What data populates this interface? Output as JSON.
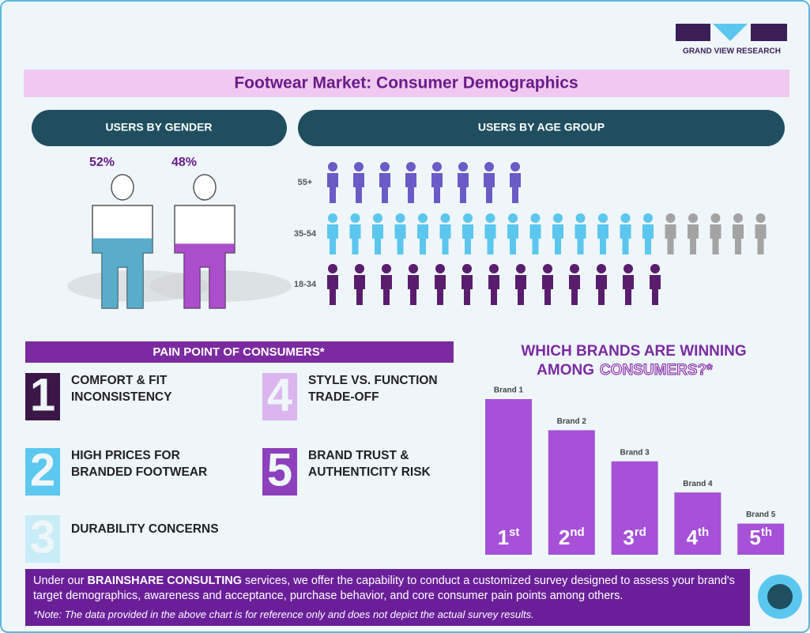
{
  "logo": "GRAND VIEW RESEARCH",
  "title": "Footwear Market: Consumer Demographics",
  "gender": {
    "heading": "USERS BY GENDER",
    "values": [
      52,
      48
    ],
    "value_labels": [
      "52%",
      "48%"
    ],
    "colors": [
      "#3d9dc2",
      "#9b2fc0"
    ]
  },
  "age": {
    "heading": "USERS BY AGE GROUP",
    "categories": [
      "55+",
      "35-54",
      "18-34"
    ],
    "filled": [
      8,
      15,
      13.2
    ],
    "unfilled": [
      0,
      5,
      0
    ],
    "colors": [
      "#6a5bc6",
      "#5bc6ee",
      "#5a1d6e"
    ],
    "unfilled_color": "#a3a3a3"
  },
  "pain_points": {
    "heading": "PAIN POINT OF CONSUMERS*",
    "items": [
      {
        "number": "1",
        "lines": [
          "COMFORT & FIT",
          "INCONSISTENCY"
        ],
        "color": "#3b1748"
      },
      {
        "number": "2",
        "lines": [
          "HIGH PRICES FOR",
          "BRANDED FOOTWEAR"
        ],
        "color": "#5cc7ef"
      },
      {
        "number": "3",
        "lines": [
          "DURABILITY CONCERNS"
        ],
        "color": "#c8ecf8"
      },
      {
        "number": "4",
        "lines": [
          "STYLE VS. FUNCTION",
          "TRADE-OFF"
        ],
        "color": "#dbb5ee"
      },
      {
        "number": "5",
        "lines": [
          "BRAND TRUST &",
          "AUTHENTICITY RISK"
        ],
        "color": "#8d3fbd"
      }
    ]
  },
  "chart_data": {
    "type": "bar",
    "title": [
      "WHICH BRANDS ARE WINNING",
      "AMONG",
      "CONSUMERS?*"
    ],
    "categories": [
      "Brand 1",
      "Brand 2",
      "Brand 3",
      "Brand 4",
      "Brand 5"
    ],
    "values": [
      5,
      4,
      3,
      2,
      1
    ],
    "ylim": [
      0,
      5
    ],
    "ranks": [
      [
        "1",
        "st"
      ],
      [
        "2",
        "nd"
      ],
      [
        "3",
        "rd"
      ],
      [
        "4",
        "th"
      ],
      [
        "5",
        "th"
      ]
    ],
    "color": "#a651d8"
  },
  "footer": {
    "text": [
      "Under our ",
      "BRAINSHARE CONSULTING",
      " services, we offer the capability to conduct a customized survey designed to assess your brand's target demographics, awareness and acceptance, purchase behavior, and core consumer pain points among others."
    ],
    "note": "*Note: The data provided in the above chart is for reference only and does not depict the actual survey results."
  }
}
